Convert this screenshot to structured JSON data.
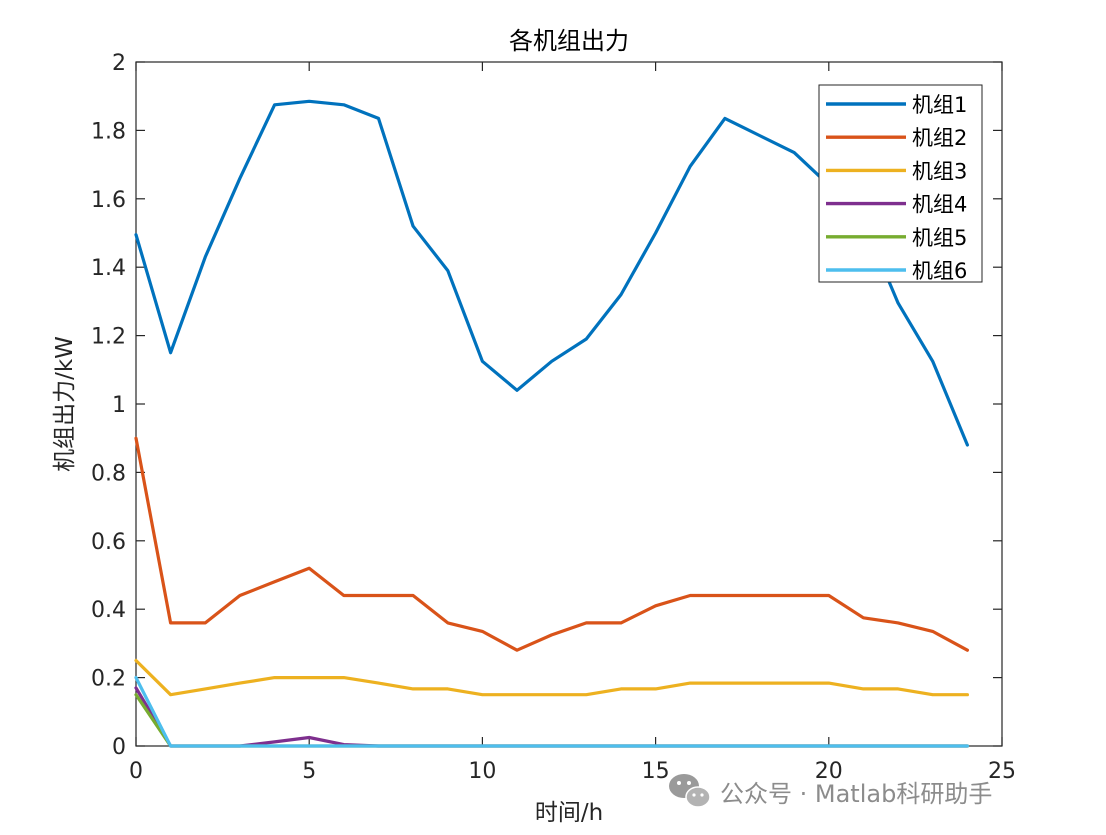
{
  "chart_data": {
    "type": "line",
    "title": "各机组出力",
    "xlabel": "时间/h",
    "ylabel": "机组出力/kW",
    "xlim": [
      0,
      25
    ],
    "ylim": [
      0,
      2
    ],
    "xticks": [
      0,
      5,
      10,
      15,
      20,
      25
    ],
    "yticks": [
      0,
      0.2,
      0.4,
      0.6,
      0.8,
      1,
      1.2,
      1.4,
      1.6,
      1.8,
      2
    ],
    "grid": false,
    "legend_position": "top-right",
    "x": [
      0,
      1,
      2,
      3,
      4,
      5,
      6,
      7,
      8,
      9,
      10,
      11,
      12,
      13,
      14,
      15,
      16,
      17,
      18,
      19,
      20,
      21,
      22,
      23,
      24
    ],
    "series": [
      {
        "name": "机组1",
        "color": "#0072BD",
        "values": [
          1.495,
          1.15,
          1.43,
          1.66,
          1.875,
          1.885,
          1.875,
          1.835,
          1.52,
          1.39,
          1.125,
          1.04,
          1.125,
          1.19,
          1.32,
          1.5,
          1.695,
          1.835,
          1.785,
          1.735,
          1.64,
          1.535,
          1.295,
          1.125,
          0.88
        ]
      },
      {
        "name": "机组2",
        "color": "#D95319",
        "values": [
          0.9,
          0.36,
          0.36,
          0.44,
          0.48,
          0.52,
          0.44,
          0.44,
          0.44,
          0.36,
          0.335,
          0.28,
          0.325,
          0.36,
          0.36,
          0.41,
          0.44,
          0.44,
          0.44,
          0.44,
          0.44,
          0.375,
          0.36,
          0.335,
          0.28
        ]
      },
      {
        "name": "机组3",
        "color": "#EDB120",
        "values": [
          0.25,
          0.15,
          0.167,
          0.184,
          0.2,
          0.2,
          0.2,
          0.184,
          0.167,
          0.167,
          0.15,
          0.15,
          0.15,
          0.15,
          0.167,
          0.167,
          0.184,
          0.184,
          0.184,
          0.184,
          0.184,
          0.167,
          0.167,
          0.15,
          0.15
        ]
      },
      {
        "name": "机组4",
        "color": "#7E2F8E",
        "values": [
          0.17,
          0,
          0,
          0,
          0.012,
          0.025,
          0.004,
          0,
          0,
          0,
          0,
          0,
          0,
          0,
          0,
          0,
          0,
          0,
          0,
          0,
          0,
          0,
          0,
          0,
          0
        ]
      },
      {
        "name": "机组5",
        "color": "#77AC30",
        "values": [
          0.15,
          0,
          0,
          0,
          0,
          0,
          0,
          0,
          0,
          0,
          0,
          0,
          0,
          0,
          0,
          0,
          0,
          0,
          0,
          0,
          0,
          0,
          0,
          0,
          0
        ]
      },
      {
        "name": "机组6",
        "color": "#4DBEEE",
        "values": [
          0.2,
          0,
          0,
          0,
          0,
          0,
          0,
          0,
          0,
          0,
          0,
          0,
          0,
          0,
          0,
          0,
          0,
          0,
          0,
          0,
          0,
          0,
          0,
          0,
          0
        ]
      }
    ]
  },
  "watermark": {
    "text": "公众号 · Matlab科研助手",
    "icon": "wechat-icon"
  }
}
